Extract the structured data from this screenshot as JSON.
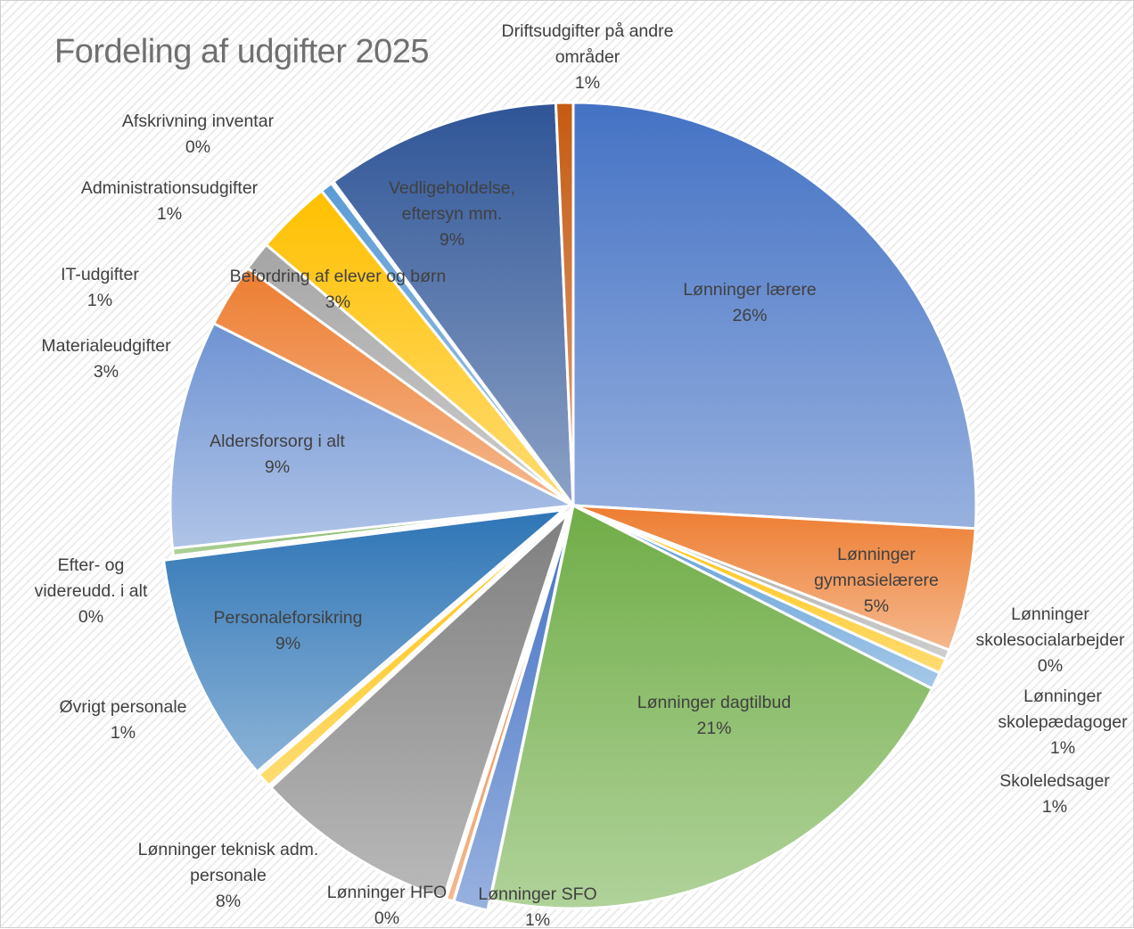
{
  "chart_data": {
    "type": "pie",
    "title": "Fordeling af udgifter 2025",
    "slices": [
      {
        "label": "Lønninger lærere",
        "label_lines": [
          "Lønninger lærere"
        ],
        "pct_label": "26%",
        "value": 26.3,
        "color": "#4472c4",
        "label_pos": "inside",
        "exploded": false
      },
      {
        "label": "Lønninger gymnasielærere",
        "label_lines": [
          "Lønninger",
          "gymnasielærere"
        ],
        "pct_label": "5%",
        "value": 5.0,
        "color": "#ed7d31",
        "label_pos": "inside",
        "exploded": false
      },
      {
        "label": "Lønninger skolesocialarbejder",
        "label_lines": [
          "Lønninger",
          "skolesocialarbejder"
        ],
        "pct_label": "0%",
        "value": 0.4,
        "color": "#a5a5a5",
        "label_pos": "outside",
        "exploded": false
      },
      {
        "label": "Lønninger skolepædagoger",
        "label_lines": [
          "Lønninger",
          "skolepædagoger"
        ],
        "pct_label": "1%",
        "value": 0.6,
        "color": "#ffc000",
        "label_pos": "outside",
        "exploded": false
      },
      {
        "label": "Skoleledsager",
        "label_lines": [
          "Skoleledsager"
        ],
        "pct_label": "1%",
        "value": 0.7,
        "color": "#5b9bd5",
        "label_pos": "outside",
        "exploded": false
      },
      {
        "label": "Lønninger dagtilbud",
        "label_lines": [
          "Lønninger dagtilbud"
        ],
        "pct_label": "21%",
        "value": 21.1,
        "color": "#70ad47",
        "label_pos": "inside",
        "exploded": false
      },
      {
        "label": "Lønninger SFO",
        "label_lines": [
          "Lønninger SFO"
        ],
        "pct_label": "1%",
        "value": 1.4,
        "color": "#4472c4",
        "label_pos": "outside",
        "exploded": true
      },
      {
        "label": "Lønninger HFO",
        "label_lines": [
          "Lønninger HFO"
        ],
        "pct_label": "0%",
        "value": 0.3,
        "color": "#ed7d31",
        "label_pos": "outside",
        "exploded": true
      },
      {
        "label": "Lønninger teknisk adm. personale",
        "label_lines": [
          "Lønninger teknisk adm.",
          "personale"
        ],
        "pct_label": "8%",
        "value": 8.3,
        "color": "#7f7f7f",
        "label_pos": "outside",
        "exploded": true
      },
      {
        "label": "Øvrigt personale",
        "label_lines": [
          "Øvrigt personale"
        ],
        "pct_label": "1%",
        "value": 0.6,
        "color": "#ffc000",
        "label_pos": "outside",
        "exploded": true
      },
      {
        "label": "Personaleforsikring",
        "label_lines": [
          "Personaleforsikring"
        ],
        "pct_label": "9%",
        "value": 9.4,
        "color": "#2e75b6",
        "label_pos": "inside",
        "exploded": true
      },
      {
        "label": "Efter- og videreudd. i alt",
        "label_lines": [
          "Efter- og",
          "videreudd. i alt"
        ],
        "pct_label": "0%",
        "value": 0.3,
        "color": "#70ad47",
        "label_pos": "outside",
        "exploded": false
      },
      {
        "label": "Aldersforsorg i alt",
        "label_lines": [
          "Aldersforsorg i alt"
        ],
        "pct_label": "9%",
        "value": 9.3,
        "color": "#6f93d3",
        "label_pos": "inside",
        "exploded": false
      },
      {
        "label": "Materialeudgifter",
        "label_lines": [
          "Materialeudgifter"
        ],
        "pct_label": "3%",
        "value": 2.6,
        "color": "#ed7d31",
        "label_pos": "outside",
        "exploded": false
      },
      {
        "label": "IT-udgifter",
        "label_lines": [
          "IT-udgifter"
        ],
        "pct_label": "1%",
        "value": 1.2,
        "color": "#a5a5a5",
        "label_pos": "outside",
        "exploded": false
      },
      {
        "label": "Befordring af elever og børn",
        "label_lines": [
          "Befordring af elever og børn"
        ],
        "pct_label": "3%",
        "value": 3.1,
        "color": "#ffc000",
        "label_pos": "inside",
        "exploded": false
      },
      {
        "label": "Administrationsudgifter",
        "label_lines": [
          "Administrationsudgifter"
        ],
        "pct_label": "1%",
        "value": 0.5,
        "color": "#5b9bd5",
        "label_pos": "outside",
        "exploded": false
      },
      {
        "label": "Afskrivning inventar",
        "label_lines": [
          "Afskrivning inventar"
        ],
        "pct_label": "0%",
        "value": 0.1,
        "color": "#70ad47",
        "label_pos": "outside",
        "exploded": false
      },
      {
        "label": "Vedligeholdelse, eftersyn mm.",
        "label_lines": [
          "Vedligeholdelse,",
          "eftersyn mm."
        ],
        "pct_label": "9%",
        "value": 9.6,
        "color": "#2f5597",
        "label_pos": "inside",
        "exploded": false
      },
      {
        "label": "Driftsudgifter på andre områder",
        "label_lines": [
          "Driftsudgifter på andre",
          "områder"
        ],
        "pct_label": "1%",
        "value": 0.7,
        "color": "#c55a11",
        "label_pos": "outside",
        "exploded": false
      }
    ],
    "start_angle_deg": 0,
    "direction": "clockwise",
    "gradient_fill": true,
    "legend": "none",
    "data_labels": "category and percentage"
  }
}
